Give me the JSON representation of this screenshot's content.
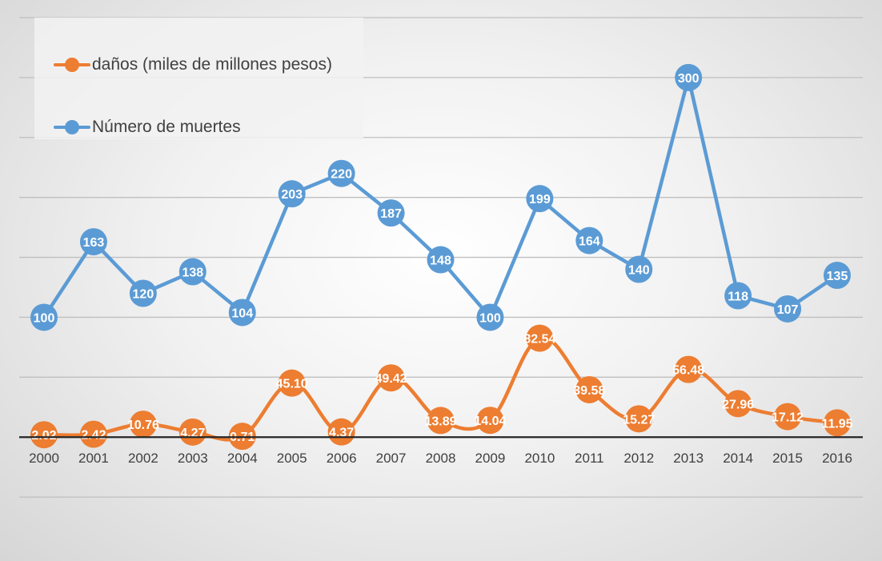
{
  "chart_data": {
    "type": "line",
    "categories": [
      "2000",
      "2001",
      "2002",
      "2003",
      "2004",
      "2005",
      "2006",
      "2007",
      "2008",
      "2009",
      "2010",
      "2011",
      "2012",
      "2013",
      "2014",
      "2015",
      "2016"
    ],
    "series": [
      {
        "name": "daños (miles de millones pesos)",
        "color": "#ED7D31",
        "smooth": true,
        "values": [
          2.02,
          2.42,
          10.76,
          4.27,
          0.71,
          45.1,
          4.37,
          49.42,
          13.89,
          14.04,
          82.54,
          39.58,
          15.27,
          56.48,
          27.96,
          17.12,
          11.95
        ],
        "labels": [
          "2.02",
          "2.42",
          "10.76",
          "4.27",
          "0.71",
          "45.10",
          "4.37",
          "49.42",
          "13.89",
          "14.04",
          "82.54",
          "39.58",
          "15.27",
          "56.48",
          "27.96",
          "17.12",
          "11.95"
        ]
      },
      {
        "name": "Número de muertes",
        "color": "#5B9BD5",
        "smooth": false,
        "values": [
          100,
          163,
          120,
          138,
          104,
          203,
          220,
          187,
          148,
          100,
          199,
          164,
          140,
          300,
          118,
          107,
          135
        ],
        "labels": [
          "100",
          "163",
          "120",
          "138",
          "104",
          "203",
          "220",
          "187",
          "148",
          "100",
          "199",
          "164",
          "140",
          "300",
          "118",
          "107",
          "135"
        ]
      }
    ],
    "title": "",
    "xlabel": "",
    "ylabel": "",
    "ylim": [
      -100,
      350
    ],
    "grid": true,
    "legend_position": "top-left"
  }
}
